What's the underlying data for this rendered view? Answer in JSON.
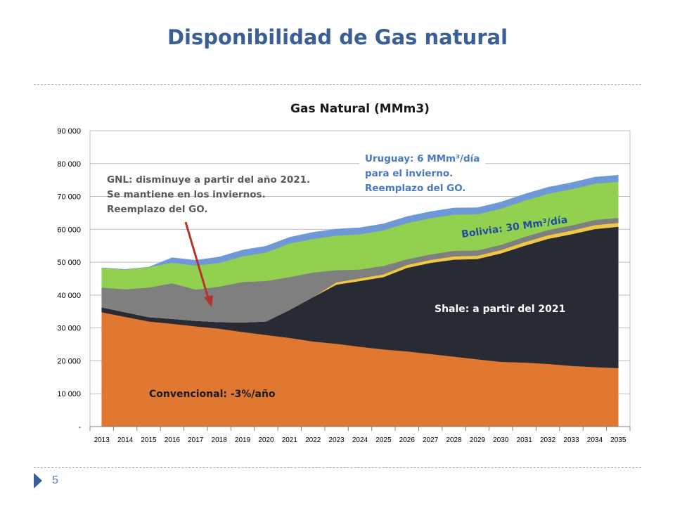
{
  "slide": {
    "title": "Disponibilidad de Gas natural",
    "page_number": "5",
    "accent_color": "#3a5f96"
  },
  "chart_data": {
    "type": "area",
    "stacked": true,
    "title": "Gas Natural (MMm3)",
    "xlabel": "",
    "ylabel": "",
    "ylim": [
      0,
      90000
    ],
    "yticks": [
      0,
      10000,
      20000,
      30000,
      40000,
      50000,
      60000,
      70000,
      80000,
      90000
    ],
    "ytick_labels": [
      "-",
      "10 000",
      "20 000",
      "30 000",
      "40 000",
      "50 000",
      "60 000",
      "70 000",
      "80 000",
      "90 000"
    ],
    "grid": true,
    "legend": "none",
    "categories": [
      "2013",
      "2014",
      "2015",
      "2016",
      "2017",
      "2018",
      "2019",
      "2020",
      "2021",
      "2022",
      "2023",
      "2024",
      "2025",
      "2026",
      "2027",
      "2028",
      "2029",
      "2030",
      "2031",
      "2032",
      "2033",
      "2034",
      "2035"
    ],
    "series": [
      {
        "color": "#e07832",
        "values": [
          34800,
          33400,
          32000,
          31300,
          30500,
          29800,
          28800,
          27900,
          27000,
          25900,
          25200,
          24300,
          23500,
          22900,
          22100,
          21300,
          20500,
          19700,
          19500,
          19100,
          18500,
          18100,
          17800
        ]
      },
      {
        "color": "#282b33",
        "values": [
          1500,
          1400,
          1300,
          1500,
          1700,
          2000,
          2900,
          4100,
          8500,
          13500,
          18000,
          20000,
          22000,
          25400,
          27700,
          29500,
          30500,
          33000,
          35500,
          38000,
          40000,
          42000,
          43000
        ]
      },
      {
        "color": "#f2c744",
        "values": [
          0,
          0,
          0,
          0,
          0,
          0,
          0,
          0,
          0,
          0,
          700,
          800,
          800,
          900,
          900,
          1000,
          1000,
          1000,
          1100,
          1100,
          1100,
          1200,
          1200
        ]
      },
      {
        "color": "#7f7f7f",
        "values": [
          6000,
          7000,
          9000,
          10800,
          9500,
          10800,
          12300,
          12300,
          10000,
          7500,
          3700,
          2700,
          2600,
          1700,
          1700,
          1700,
          1600,
          1600,
          1600,
          1600,
          1600,
          1600,
          1500
        ]
      },
      {
        "color": "#92d050",
        "values": [
          6000,
          6000,
          6200,
          6300,
          7300,
          7200,
          7800,
          8700,
          10200,
          10200,
          10500,
          10700,
          10800,
          11000,
          11000,
          11000,
          11000,
          11000,
          11000,
          11000,
          11000,
          11000,
          11000
        ]
      },
      {
        "color": "#6e98d6",
        "values": [
          0,
          0,
          0,
          1500,
          1600,
          1800,
          1900,
          1900,
          1900,
          2000,
          2000,
          2000,
          2000,
          2000,
          2000,
          2000,
          2000,
          2000,
          2000,
          2000,
          2000,
          2000,
          2000
        ]
      }
    ],
    "annotations": [
      {
        "name": "gnl-annotation",
        "lines": [
          "GNL: disminuye a partir del año 2021.",
          "Se mantiene  en los inviernos.",
          "Reemplazo del GO."
        ],
        "color": "#595959"
      },
      {
        "name": "uruguay-annotation",
        "lines": [
          "Uruguay: 6 MMm³/día",
          "para el invierno.",
          "Reemplazo del GO."
        ],
        "color": "#4a78c2"
      },
      {
        "name": "bolivia-annotation",
        "text": "Bolivia: 30 Mm³/día",
        "color": "#1f4e9c"
      },
      {
        "name": "shale-annotation",
        "text": "Shale:  a partir del 2021",
        "color": "#ffffff"
      },
      {
        "name": "convencional-annotation",
        "text": "Convencional:  -3%/año",
        "color": "#1a1a1a"
      }
    ],
    "arrow_color": "#b5332a"
  }
}
